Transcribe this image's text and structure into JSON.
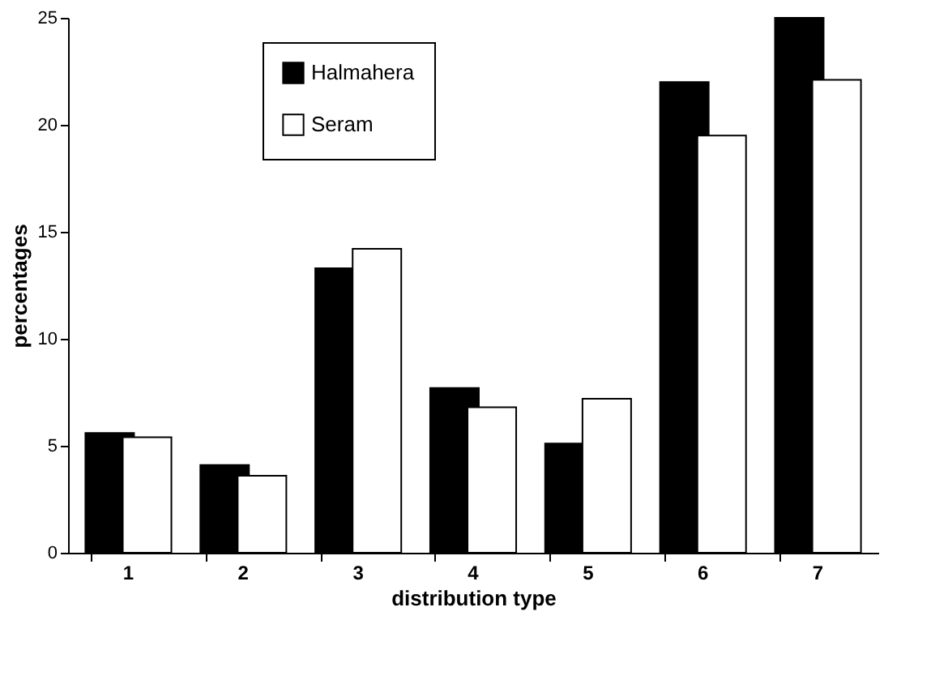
{
  "chart_data": {
    "type": "bar",
    "xlabel": "distribution type",
    "ylabel": "percentages",
    "categories": [
      "1",
      "2",
      "3",
      "4",
      "5",
      "6",
      "7"
    ],
    "series": [
      {
        "name": "Halmahera",
        "color": "#000000",
        "values": [
          5.6,
          4.1,
          13.3,
          7.7,
          5.1,
          22.0,
          25.0
        ]
      },
      {
        "name": "Seram",
        "color": "#ffffff",
        "values": [
          5.4,
          3.6,
          14.2,
          6.8,
          7.2,
          19.5,
          22.1
        ]
      }
    ],
    "ylim": [
      0,
      25
    ],
    "yticks": [
      0,
      5,
      10,
      15,
      20,
      25
    ],
    "grid": false,
    "legend": "top left"
  }
}
